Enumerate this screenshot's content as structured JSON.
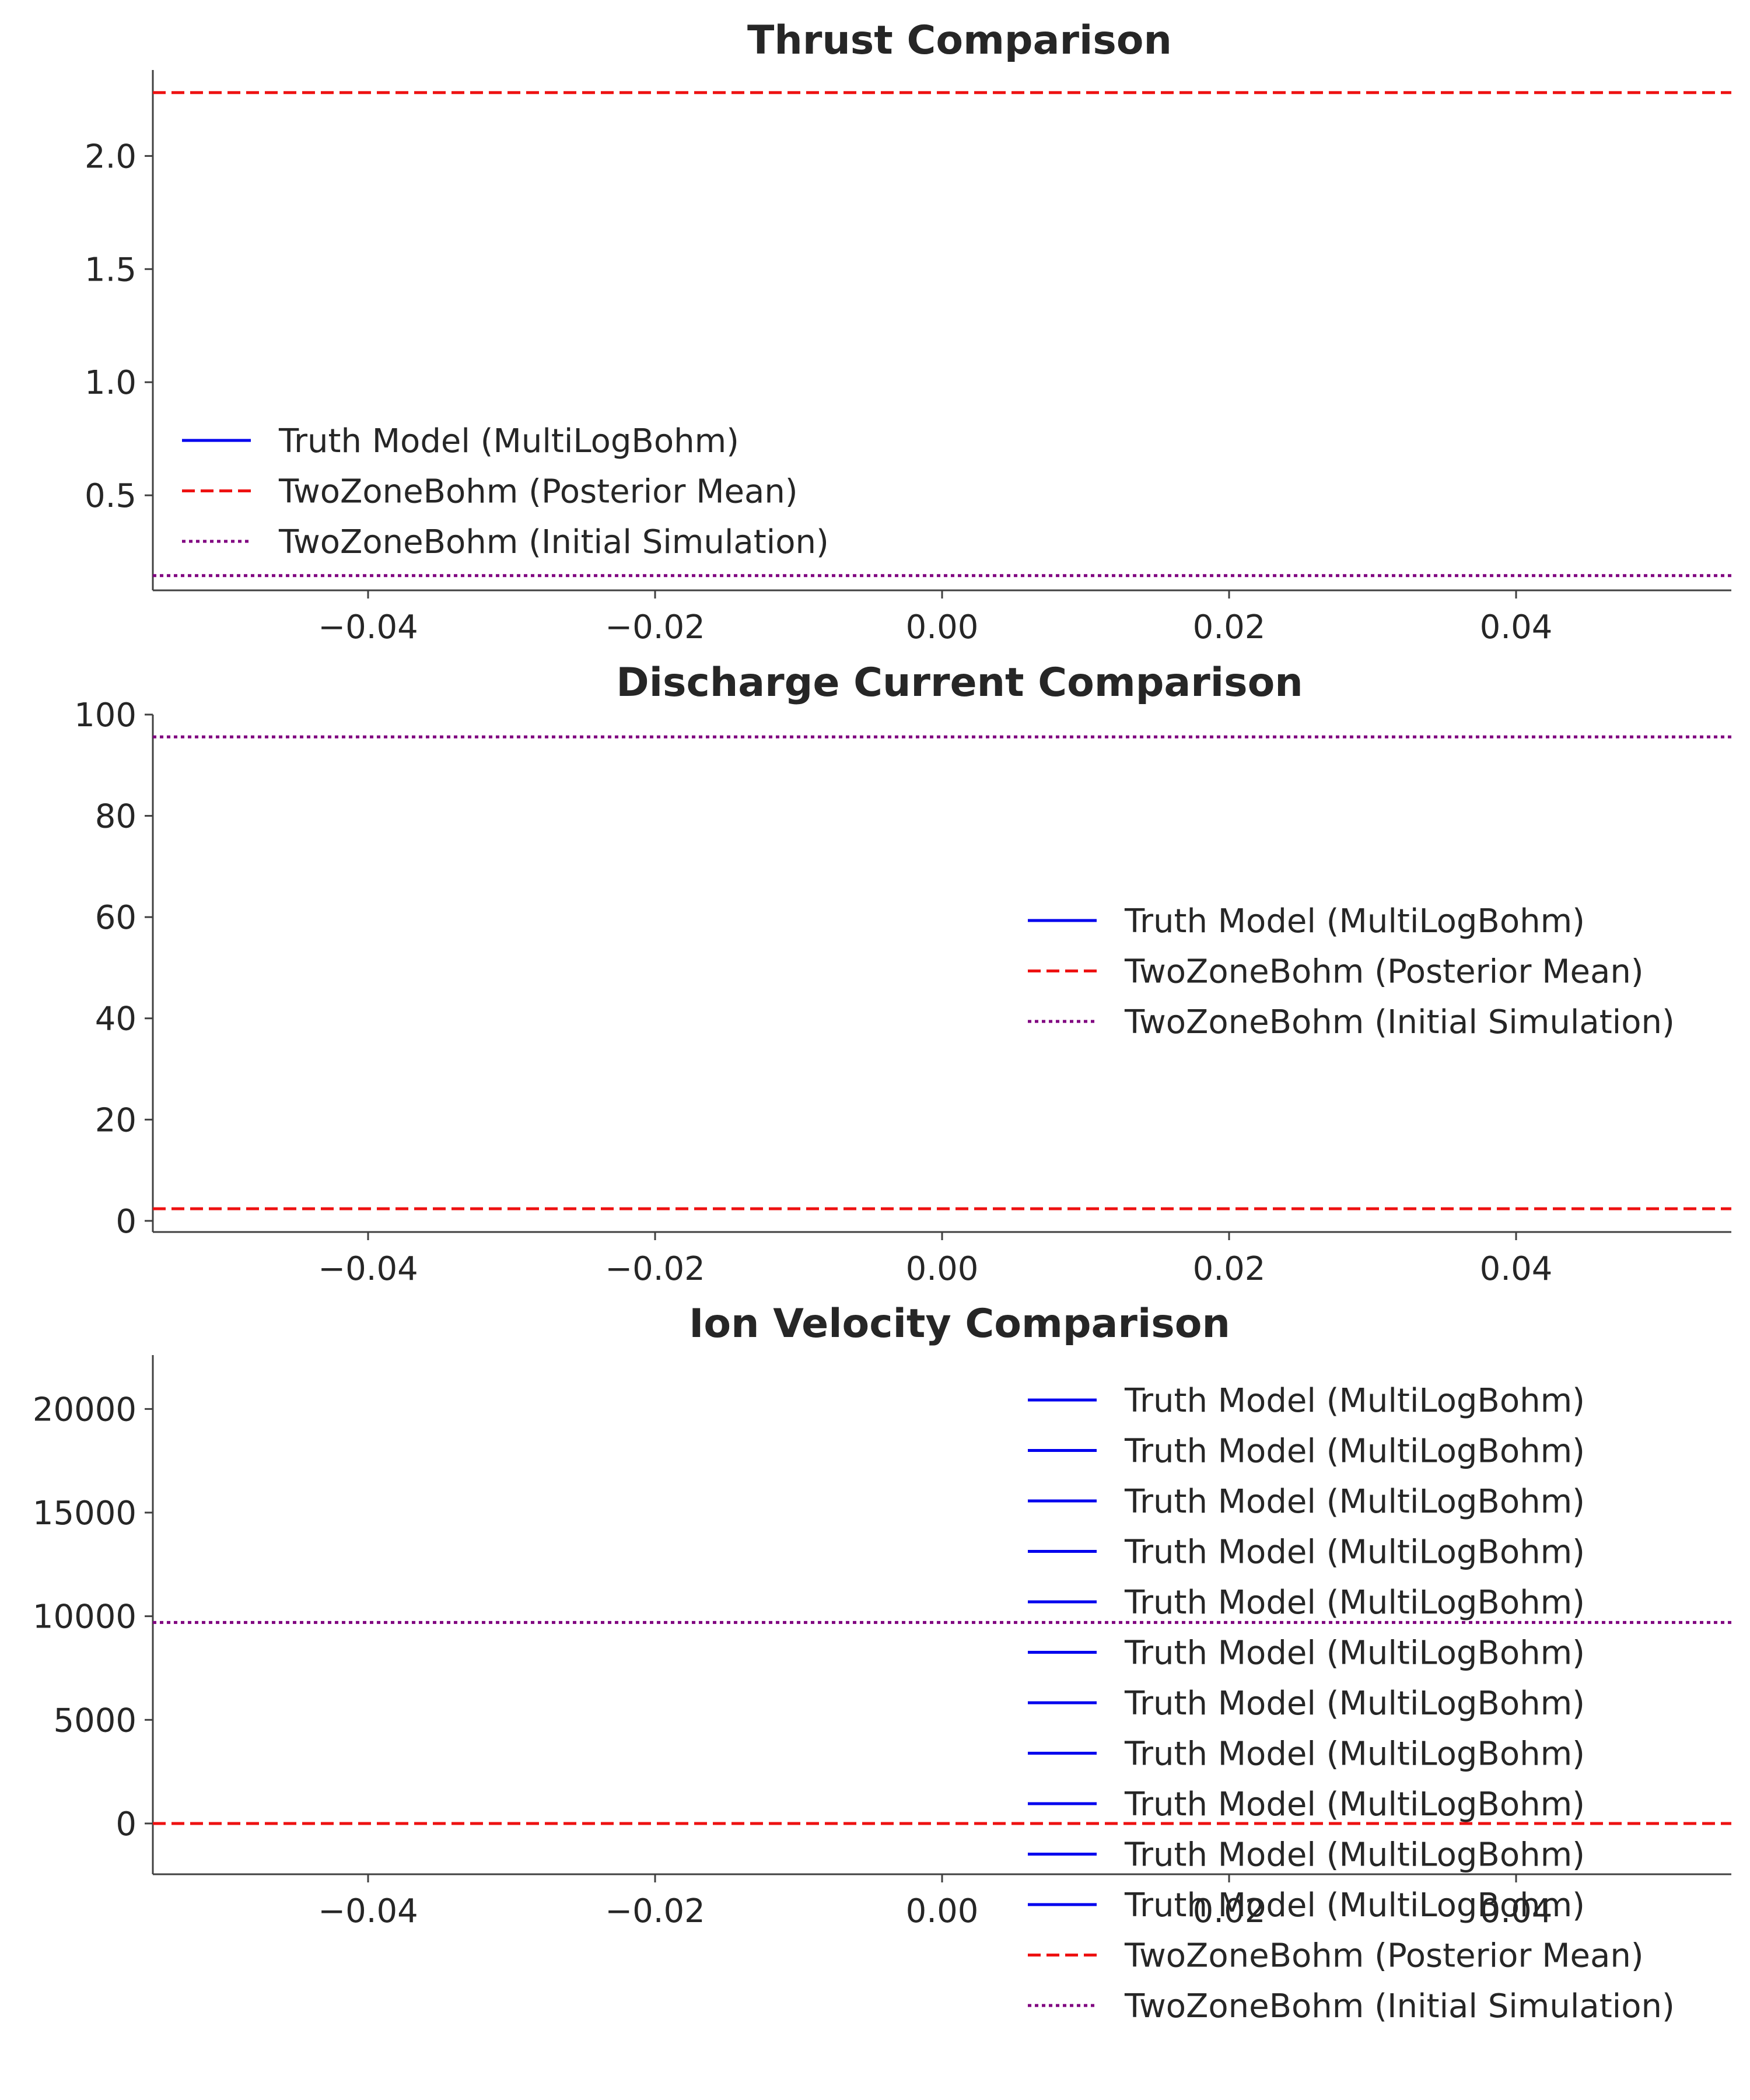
{
  "colors": {
    "truth": "#0000ee",
    "posterior": "#ee1111",
    "initial": "#800080",
    "axis": "#404040",
    "text": "#262626"
  },
  "chart_data": [
    {
      "type": "line",
      "title": "Thrust Comparison",
      "xlim": [
        -0.055,
        0.055
      ],
      "ylim": [
        0.08,
        2.38
      ],
      "xticks": [
        -0.04,
        -0.02,
        0.0,
        0.02,
        0.04
      ],
      "xtick_labels": [
        "−0.04",
        "−0.02",
        "0.00",
        "0.02",
        "0.04"
      ],
      "yticks": [
        0.5,
        1.0,
        1.5,
        2.0
      ],
      "ytick_labels": [
        "0.5",
        "1.0",
        "1.5",
        "2.0"
      ],
      "series": [
        {
          "name": "Truth Model (MultiLogBohm)",
          "style": "solid",
          "color": "#0000ee",
          "y": null
        },
        {
          "name": "TwoZoneBohm (Posterior Mean)",
          "style": "dashed",
          "color": "#ee1111",
          "y": 2.28
        },
        {
          "name": "TwoZoneBohm (Initial Simulation)",
          "style": "dotted",
          "color": "#800080",
          "y": 0.145
        }
      ],
      "legend": {
        "placement": "lower-left"
      }
    },
    {
      "type": "line",
      "title": "Discharge Current Comparison",
      "xlim": [
        -0.055,
        0.055
      ],
      "ylim": [
        -2.2,
        100
      ],
      "xticks": [
        -0.04,
        -0.02,
        0.0,
        0.02,
        0.04
      ],
      "xtick_labels": [
        "−0.04",
        "−0.02",
        "0.00",
        "0.02",
        "0.04"
      ],
      "yticks": [
        0,
        20,
        40,
        60,
        80,
        100
      ],
      "ytick_labels": [
        "0",
        "20",
        "40",
        "60",
        "80",
        "100"
      ],
      "series": [
        {
          "name": "Truth Model (MultiLogBohm)",
          "style": "solid",
          "color": "#0000ee",
          "y": null
        },
        {
          "name": "TwoZoneBohm (Posterior Mean)",
          "style": "dashed",
          "color": "#ee1111",
          "y": 2.4
        },
        {
          "name": "TwoZoneBohm (Initial Simulation)",
          "style": "dotted",
          "color": "#800080",
          "y": 95.6
        }
      ],
      "legend": {
        "placement": "center-right"
      }
    },
    {
      "type": "line",
      "title": "Ion Velocity Comparison",
      "xlim": [
        -0.055,
        0.055
      ],
      "ylim": [
        -2450,
        22600
      ],
      "xticks": [
        -0.04,
        -0.02,
        0.0,
        0.02,
        0.04
      ],
      "xtick_labels": [
        "−0.04",
        "−0.02",
        "0.00",
        "0.02",
        "0.04"
      ],
      "yticks": [
        0,
        5000,
        10000,
        15000,
        20000
      ],
      "ytick_labels": [
        "0",
        "5000",
        "10000",
        "15000",
        "20000"
      ],
      "series": [
        {
          "name": "Truth Model (MultiLogBohm)",
          "style": "solid",
          "color": "#0000ee",
          "y": null
        },
        {
          "name": "Truth Model (MultiLogBohm)",
          "style": "solid",
          "color": "#0000ee",
          "y": null
        },
        {
          "name": "Truth Model (MultiLogBohm)",
          "style": "solid",
          "color": "#0000ee",
          "y": null
        },
        {
          "name": "Truth Model (MultiLogBohm)",
          "style": "solid",
          "color": "#0000ee",
          "y": null
        },
        {
          "name": "Truth Model (MultiLogBohm)",
          "style": "solid",
          "color": "#0000ee",
          "y": null
        },
        {
          "name": "Truth Model (MultiLogBohm)",
          "style": "solid",
          "color": "#0000ee",
          "y": null
        },
        {
          "name": "Truth Model (MultiLogBohm)",
          "style": "solid",
          "color": "#0000ee",
          "y": null
        },
        {
          "name": "Truth Model (MultiLogBohm)",
          "style": "solid",
          "color": "#0000ee",
          "y": null
        },
        {
          "name": "Truth Model (MultiLogBohm)",
          "style": "solid",
          "color": "#0000ee",
          "y": null
        },
        {
          "name": "Truth Model (MultiLogBohm)",
          "style": "solid",
          "color": "#0000ee",
          "y": null
        },
        {
          "name": "Truth Model (MultiLogBohm)",
          "style": "solid",
          "color": "#0000ee",
          "y": null
        },
        {
          "name": "TwoZoneBohm (Posterior Mean)",
          "style": "dashed",
          "color": "#ee1111",
          "y": 0
        },
        {
          "name": "TwoZoneBohm (Initial Simulation)",
          "style": "dotted",
          "color": "#800080",
          "y": 9700
        }
      ],
      "legend": {
        "placement": "lower-right, extending below the axes"
      }
    }
  ]
}
